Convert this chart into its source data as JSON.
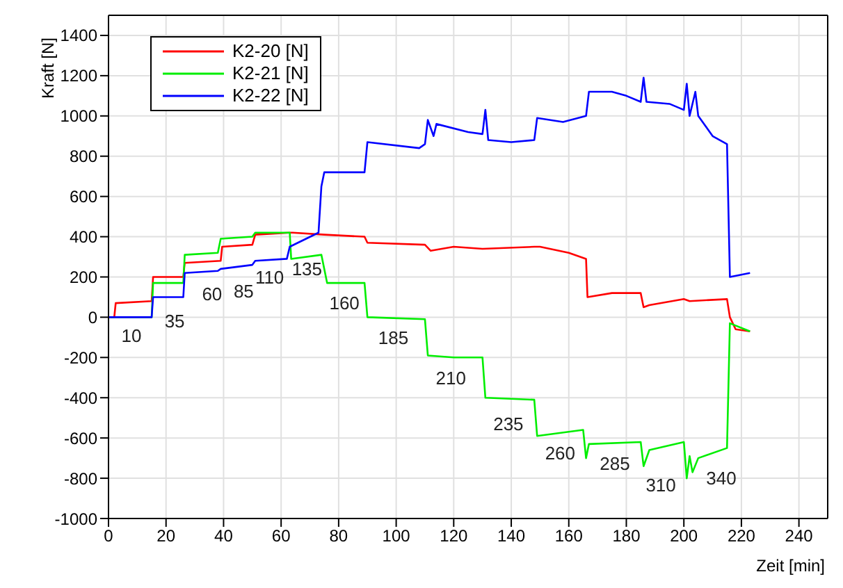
{
  "chart_data": {
    "type": "line",
    "xlabel": "Zeit [min]",
    "ylabel": "Kraft [N]",
    "xlim": [
      0,
      250
    ],
    "xticks": [
      0,
      20,
      40,
      60,
      80,
      100,
      120,
      140,
      160,
      180,
      200,
      220,
      240
    ],
    "ylim": [
      -1000,
      1500
    ],
    "yticks": [
      -1000,
      -800,
      -600,
      -400,
      -200,
      0,
      200,
      400,
      600,
      800,
      1000,
      1200,
      1400
    ],
    "grid": true,
    "legend": "top left",
    "marker": "none",
    "line_style": "solid",
    "series": [
      {
        "name": "K2-20 [N]",
        "color": "#ff0000",
        "x": [
          0,
          2,
          2.5,
          15,
          15.5,
          26,
          26.5,
          39,
          39.5,
          50,
          51,
          63,
          64,
          75,
          89,
          90,
          110,
          112,
          120,
          130,
          148,
          150,
          160,
          166,
          166.5,
          175,
          185,
          186,
          188,
          200,
          202,
          215,
          216,
          218,
          223
        ],
        "values": [
          0,
          0,
          70,
          80,
          200,
          200,
          270,
          280,
          350,
          360,
          410,
          420,
          420,
          410,
          400,
          370,
          360,
          330,
          350,
          340,
          350,
          350,
          320,
          290,
          100,
          120,
          120,
          50,
          60,
          90,
          80,
          90,
          0,
          -60,
          -70
        ]
      },
      {
        "name": "K2-21 [N]",
        "color": "#00ee00",
        "x": [
          0,
          15,
          15.5,
          26,
          26.5,
          38,
          39,
          50,
          51,
          63,
          63.5,
          74,
          76,
          89,
          90,
          110,
          111,
          120,
          130,
          131,
          148,
          149,
          165,
          166,
          167,
          185,
          186,
          188,
          200,
          201,
          202,
          203,
          205,
          215,
          216,
          223
        ],
        "values": [
          0,
          0,
          170,
          170,
          310,
          320,
          390,
          400,
          420,
          420,
          290,
          310,
          170,
          170,
          0,
          -10,
          -190,
          -200,
          -200,
          -400,
          -410,
          -590,
          -560,
          -700,
          -630,
          -620,
          -740,
          -660,
          -620,
          -800,
          -690,
          -770,
          -700,
          -650,
          -30,
          -70
        ]
      },
      {
        "name": "K2-22 [N]",
        "color": "#0000ff",
        "x": [
          0,
          15,
          15.5,
          26,
          26.5,
          38,
          39,
          50,
          51,
          62,
          63,
          73,
          74,
          75,
          89,
          90,
          108,
          110,
          111,
          113,
          114,
          125,
          130,
          131,
          132,
          140,
          148,
          149,
          158,
          166,
          167,
          175,
          180,
          185,
          186,
          187,
          195,
          200,
          201,
          202,
          204,
          205,
          210,
          215,
          216,
          223
        ],
        "values": [
          0,
          0,
          100,
          100,
          220,
          230,
          240,
          260,
          280,
          290,
          350,
          420,
          650,
          720,
          720,
          870,
          840,
          860,
          980,
          900,
          960,
          920,
          910,
          1030,
          880,
          870,
          880,
          990,
          970,
          1000,
          1120,
          1120,
          1100,
          1070,
          1190,
          1070,
          1060,
          1030,
          1160,
          1000,
          1120,
          1000,
          900,
          860,
          200,
          220
        ]
      }
    ],
    "annotations": [
      "10",
      "35",
      "60",
      "85",
      "110",
      "135",
      "160",
      "185",
      "210",
      "235",
      "260",
      "285",
      "310",
      "340"
    ]
  }
}
